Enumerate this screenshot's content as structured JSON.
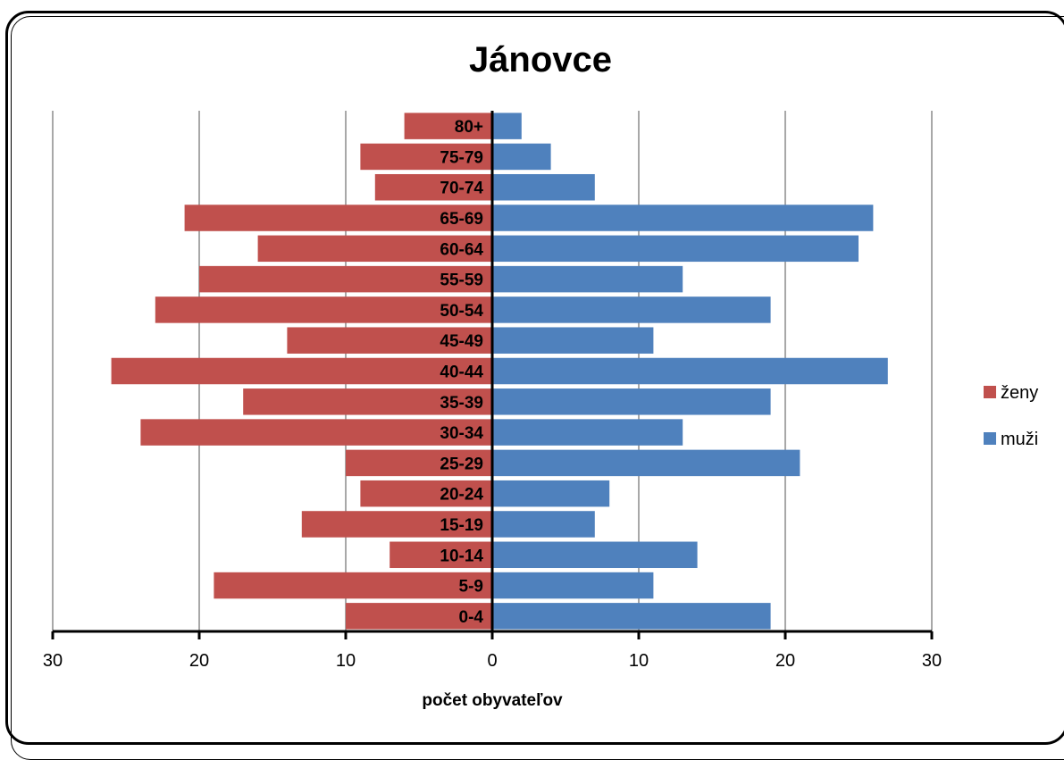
{
  "chart_data": {
    "type": "bar",
    "orientation": "horizontal",
    "title": "Jánovce",
    "xlabel": "počet obyvateľov",
    "ylabel": "",
    "categories": [
      "0-4",
      "5-9",
      "10-14",
      "15-19",
      "20-24",
      "25-29",
      "30-34",
      "35-39",
      "40-44",
      "45-49",
      "50-54",
      "55-59",
      "60-64",
      "65-69",
      "70-74",
      "75-79",
      "80+"
    ],
    "series": [
      {
        "name": "ženy",
        "color": "#c0504d",
        "side": "left",
        "values": [
          10,
          19,
          7,
          13,
          9,
          10,
          24,
          17,
          26,
          14,
          23,
          20,
          16,
          21,
          8,
          9,
          6
        ]
      },
      {
        "name": "muži",
        "color": "#4f81bd",
        "side": "right",
        "values": [
          19,
          11,
          14,
          7,
          8,
          21,
          13,
          19,
          27,
          11,
          19,
          13,
          25,
          26,
          7,
          4,
          2
        ]
      }
    ],
    "xlim": [
      -30,
      30
    ],
    "xticks": [
      -30,
      -20,
      -10,
      0,
      10,
      20,
      30
    ],
    "xtick_labels": [
      "30",
      "20",
      "10",
      "0",
      "10",
      "20",
      "30"
    ],
    "grid": true,
    "legend_position": "right"
  }
}
